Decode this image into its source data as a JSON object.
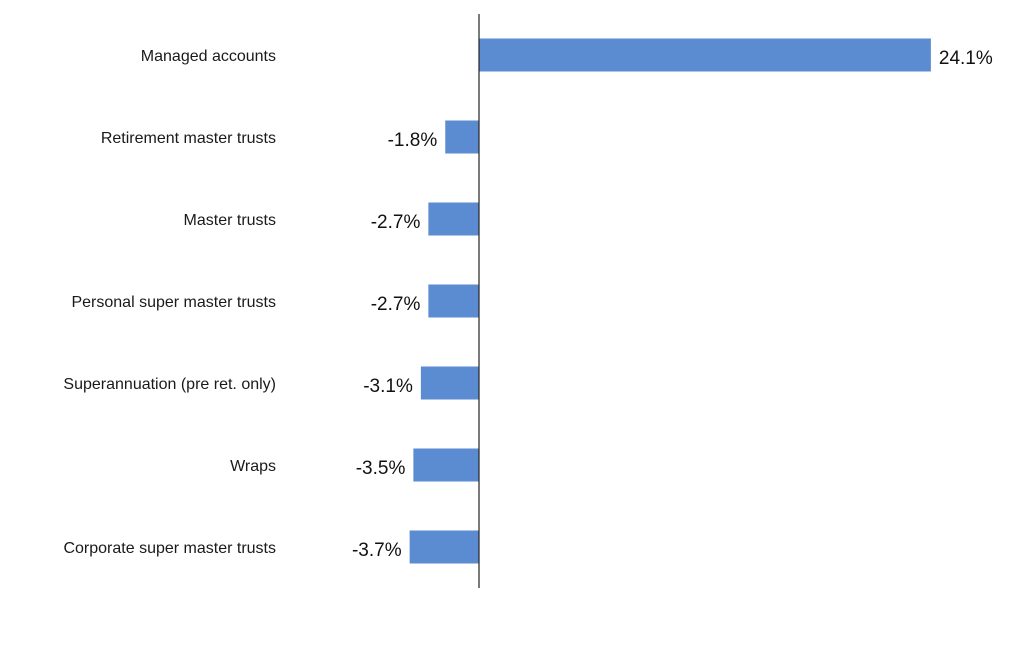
{
  "chart_data": {
    "type": "bar",
    "orientation": "horizontal",
    "categories": [
      "Managed accounts",
      "Retirement master trusts",
      "Master trusts",
      "Personal super master trusts",
      "Superannuation (pre ret. only)",
      "Wraps",
      "Corporate super master trusts"
    ],
    "values": [
      24.1,
      -1.8,
      -2.7,
      -2.7,
      -3.1,
      -3.5,
      -3.7
    ],
    "value_labels": [
      "24.1%",
      "-1.8%",
      "-2.7%",
      "-2.7%",
      "-3.1%",
      "-3.5%",
      "-3.7%"
    ],
    "title": "",
    "xlabel": "",
    "ylabel": "",
    "grid": false,
    "legend": "none",
    "bar_color": "#5b8bd0",
    "axis_color": "#222222"
  }
}
